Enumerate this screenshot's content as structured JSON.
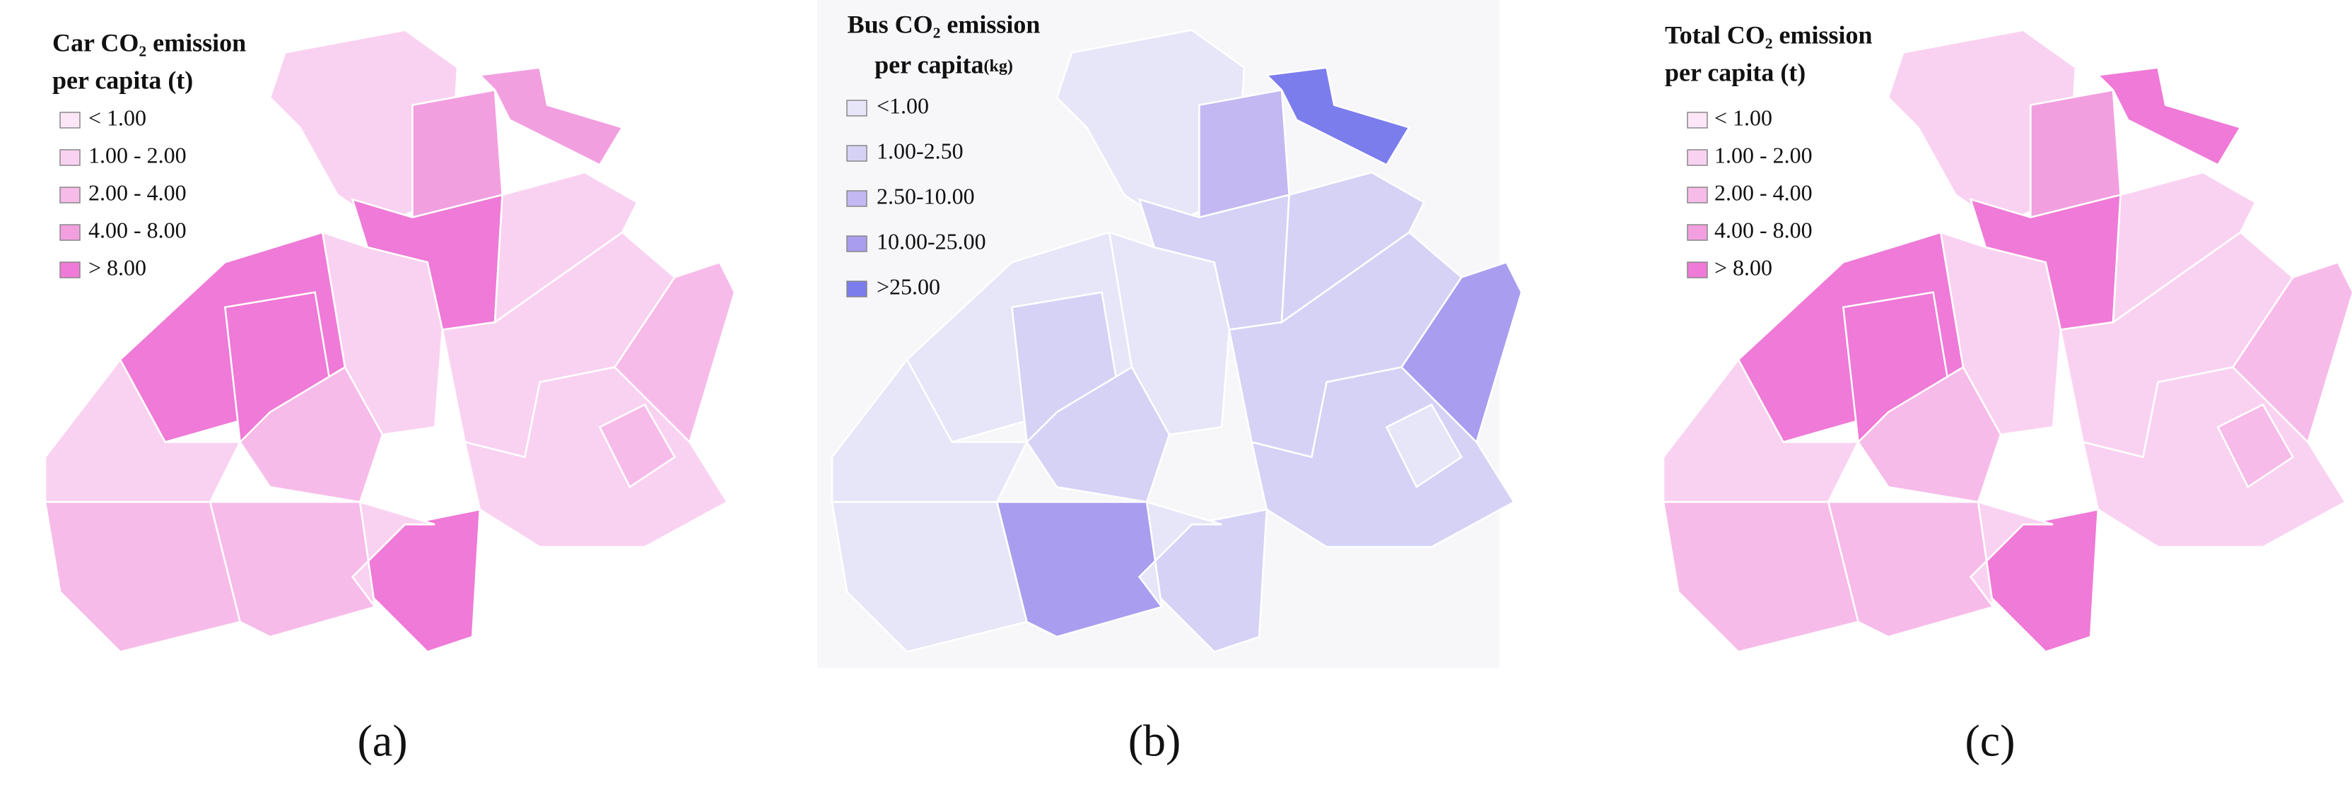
{
  "panels": [
    {
      "title": [
        "Car CO₂ emission",
        "per capita (t)"
      ],
      "legend": [
        {
          "label": "< 1.00",
          "color": "#fce6f7"
        },
        {
          "label": "1.00 - 2.00",
          "color": "#fad2f1"
        },
        {
          "label": "2.00 - 4.00",
          "color": "#f7bbe9"
        },
        {
          "label": "4.00 - 8.00",
          "color": "#f29fe0"
        },
        {
          "label": "> 8.00",
          "color": "#ef7ad7"
        }
      ],
      "caption": "(a)"
    },
    {
      "title": [
        "Bus CO₂ emission",
        "per capita"
      ],
      "unit": "(kg)",
      "legend": [
        {
          "label": "<1.00",
          "color": "#e6e6f8"
        },
        {
          "label": "1.00-2.50",
          "color": "#d5d2f6"
        },
        {
          "label": "2.50-10.00",
          "color": "#c3b8f2"
        },
        {
          "label": "10.00-25.00",
          "color": "#a99def"
        },
        {
          "label": ">25.00",
          "color": "#7b7ded"
        }
      ],
      "caption": "(b)"
    },
    {
      "title": [
        "Total CO₂ emission",
        "per capita (t)"
      ],
      "legend": [
        {
          "label": "< 1.00",
          "color": "#fce6f7"
        },
        {
          "label": "1.00 - 2.00",
          "color": "#fad2f1"
        },
        {
          "label": "2.00 - 4.00",
          "color": "#f7bbe9"
        },
        {
          "label": "4.00 - 8.00",
          "color": "#f29fe0"
        },
        {
          "label": "> 8.00",
          "color": "#ef7ad7"
        }
      ],
      "caption": "(c)"
    }
  ]
}
